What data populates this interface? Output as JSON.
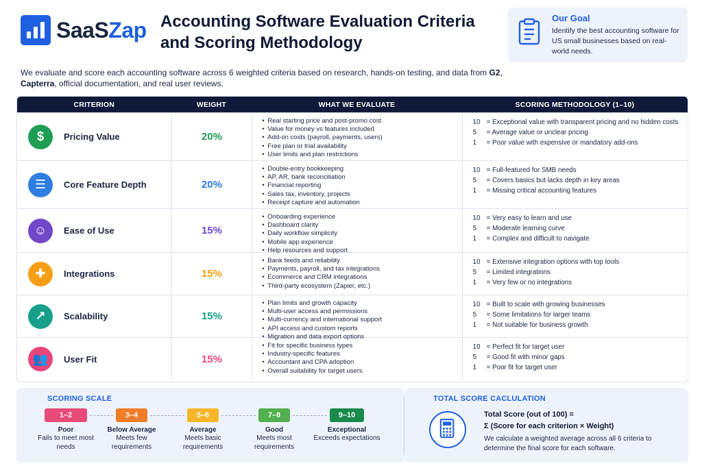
{
  "brand": {
    "name_part1": "SaaS",
    "name_part2": "Zap",
    "color": "#1f5fe0"
  },
  "title": "Accounting Software Evaluation Criteria and Scoring Methodology",
  "goal": {
    "title": "Our Goal",
    "text": "Identify the best accounting software for US small businesses based on real-world needs.",
    "icon": "clipboard-icon"
  },
  "intro": {
    "text_before": "We evaluate and score each accounting software across 6 weighted criteria based on research, hands-on testing, and data from ",
    "source1": "G2",
    "sep": ", ",
    "source2": "Capterra",
    "text_after": ", official documentation, and real user reviews."
  },
  "table": {
    "headers": [
      "CRITERION",
      "WEIGHT",
      "WHAT WE EVALUATE",
      "SCORING METHODOLOGY (1–10)"
    ],
    "rows": [
      {
        "name": "Pricing Value",
        "weight": "20%",
        "icon": "dollar-icon",
        "icon_glyph": "$",
        "color": "#1f9d55",
        "evaluate": [
          "Real starting price and post-promo cost",
          "Value for money vs features included",
          "Add-on costs (payroll, payments, users)",
          "Free plan or trial availability",
          "User limits and plan restrictions"
        ],
        "scoring": [
          {
            "n": "10",
            "t": "= Exceptional value with transparent pricing and no hidden costs"
          },
          {
            "n": "5",
            "t": "= Average value or unclear pricing"
          },
          {
            "n": "1",
            "t": "= Poor value with expensive or mandatory add-ons"
          }
        ]
      },
      {
        "name": "Core Feature Depth",
        "weight": "20%",
        "icon": "list-icon",
        "icon_glyph": "☰",
        "color": "#2f7de1",
        "evaluate": [
          "Double-entry bookkeeping",
          "AP, AR, bank reconciliation",
          "Financial reporting",
          "Sales tax, inventory, projects",
          "Receipt capture and automation"
        ],
        "scoring": [
          {
            "n": "10",
            "t": "= Full-featured for SMB needs"
          },
          {
            "n": "5",
            "t": "= Covers basics but lacks depth in key areas"
          },
          {
            "n": "1",
            "t": "= Missing critical accounting features"
          }
        ]
      },
      {
        "name": "Ease of Use",
        "weight": "15%",
        "icon": "smiley-icon",
        "icon_glyph": "☺",
        "color": "#7048c8",
        "evaluate": [
          "Onboarding experience",
          "Dashboard clarity",
          "Daily workflow simplicity",
          "Mobile app experience",
          "Help resources and support"
        ],
        "scoring": [
          {
            "n": "10",
            "t": "= Very easy to learn and use"
          },
          {
            "n": "5",
            "t": "= Moderate learning curve"
          },
          {
            "n": "1",
            "t": "= Complex and difficult to navigate"
          }
        ]
      },
      {
        "name": "Integrations",
        "weight": "15%",
        "icon": "puzzle-icon",
        "icon_glyph": "✚",
        "color": "#f5a014",
        "evaluate": [
          "Bank feeds and reliability",
          "Payments, payroll, and tax integrations",
          "Ecommerce and CRM integrations",
          "Third-party ecosystem (Zapier, etc.)"
        ],
        "scoring": [
          {
            "n": "10",
            "t": "= Extensive integration options with top tools"
          },
          {
            "n": "5",
            "t": "= Limited integrations"
          },
          {
            "n": "1",
            "t": "= Very few or no integrations"
          }
        ]
      },
      {
        "name": "Scalability",
        "weight": "15%",
        "icon": "growth-chart-icon",
        "icon_glyph": "↗",
        "color": "#16a08a",
        "evaluate": [
          "Plan limits and growth capacity",
          "Multi-user access and permissions",
          "Multi-currency and international support",
          "API access and custom reports",
          "Migration and data export options"
        ],
        "scoring": [
          {
            "n": "10",
            "t": "= Built to scale with growing businesses"
          },
          {
            "n": "5",
            "t": "= Some limitations for larger teams"
          },
          {
            "n": "1",
            "t": "= Not suitable for business growth"
          }
        ]
      },
      {
        "name": "User Fit",
        "weight": "15%",
        "icon": "users-icon",
        "icon_glyph": "👥",
        "color": "#e8457a",
        "evaluate": [
          "Fit for specific business types",
          "Industry-specific features",
          "Accountant and CPA adoption",
          "Overall suitability for target users"
        ],
        "scoring": [
          {
            "n": "10",
            "t": "= Perfect fit for target user"
          },
          {
            "n": "5",
            "t": "= Good fit with minor gaps"
          },
          {
            "n": "1",
            "t": "= Poor fit for target user"
          }
        ]
      }
    ]
  },
  "scale": {
    "title": "SCORING SCALE",
    "items": [
      {
        "range": "1–2",
        "label": "Poor",
        "desc": "Fails to meet most needs",
        "color": "#e84a7a"
      },
      {
        "range": "3–4",
        "label": "Below Average",
        "desc": "Meets few requirements",
        "color": "#f07d28"
      },
      {
        "range": "5–6",
        "label": "Average",
        "desc": "Meets basic requirements",
        "color": "#f7b52a"
      },
      {
        "range": "7–8",
        "label": "Good",
        "desc": "Meets most requirements",
        "color": "#52b04f"
      },
      {
        "range": "9–10",
        "label": "Exceptional",
        "desc": "Exceeds expectations",
        "color": "#1a8a4c"
      }
    ]
  },
  "total": {
    "title": "TOTAL SCORE CACLULATION",
    "score_title": "Total Score (out of 100) =",
    "formula": "Σ (Score for each criterion × Weight)",
    "desc": "We calculate a weighted average across all 6 criteria to determine the final score for each software.",
    "icon": "calculator-icon"
  }
}
